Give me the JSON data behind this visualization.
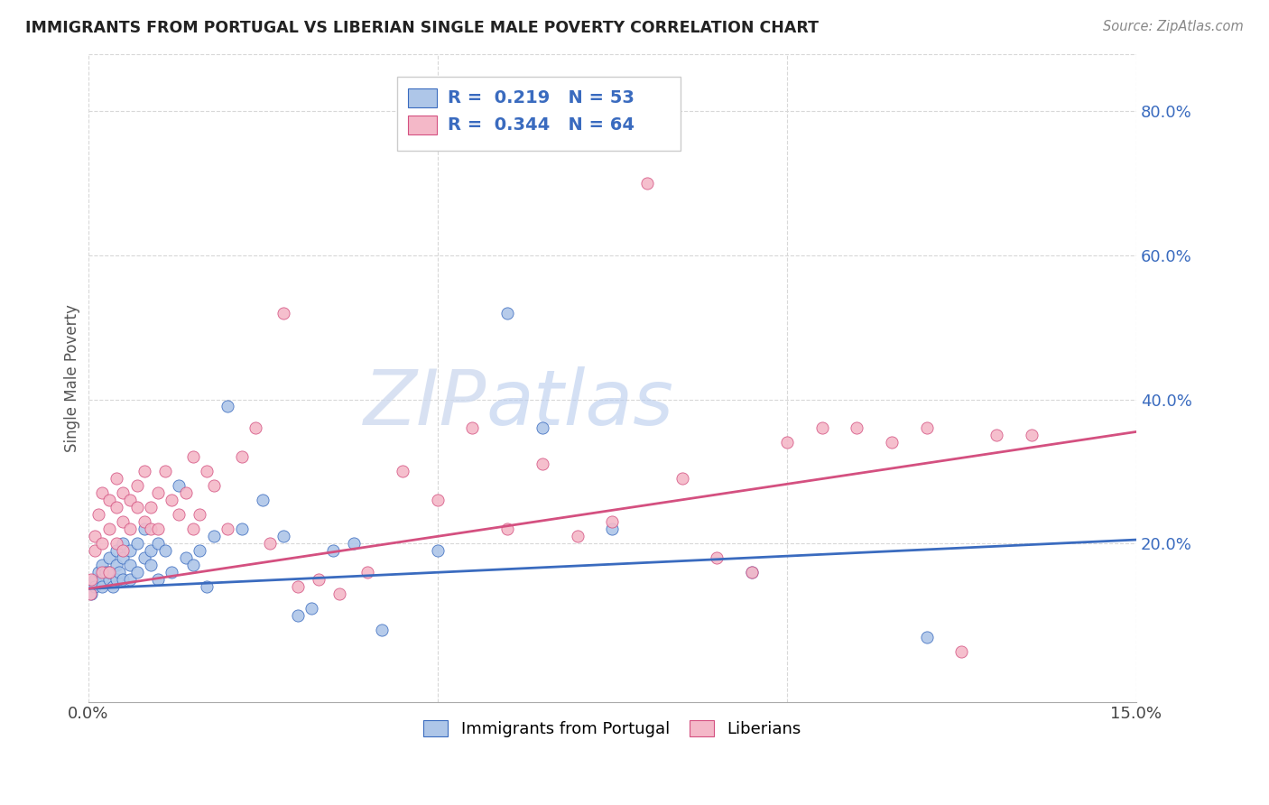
{
  "title": "IMMIGRANTS FROM PORTUGAL VS LIBERIAN SINGLE MALE POVERTY CORRELATION CHART",
  "source": "Source: ZipAtlas.com",
  "ylabel": "Single Male Poverty",
  "right_yticks": [
    "80.0%",
    "60.0%",
    "40.0%",
    "20.0%"
  ],
  "right_ytick_vals": [
    0.8,
    0.6,
    0.4,
    0.2
  ],
  "xlim": [
    0.0,
    0.15
  ],
  "ylim": [
    -0.02,
    0.88
  ],
  "color_portugal": "#aec6e8",
  "color_liberian": "#f4b8c8",
  "color_blue": "#3a6bbf",
  "color_pink": "#d45080",
  "watermark_zip": "ZIP",
  "watermark_atlas": "atlas",
  "background_color": "#ffffff",
  "grid_color": "#d8d8d8",
  "portugal_scatter_x": [
    0.0005,
    0.001,
    0.001,
    0.0015,
    0.002,
    0.002,
    0.002,
    0.0025,
    0.003,
    0.003,
    0.003,
    0.0035,
    0.004,
    0.004,
    0.004,
    0.0045,
    0.005,
    0.005,
    0.005,
    0.006,
    0.006,
    0.006,
    0.007,
    0.007,
    0.008,
    0.008,
    0.009,
    0.009,
    0.01,
    0.01,
    0.011,
    0.012,
    0.013,
    0.014,
    0.015,
    0.016,
    0.017,
    0.018,
    0.02,
    0.022,
    0.025,
    0.028,
    0.03,
    0.032,
    0.035,
    0.038,
    0.042,
    0.05,
    0.06,
    0.065,
    0.075,
    0.095,
    0.12
  ],
  "portugal_scatter_y": [
    0.13,
    0.15,
    0.14,
    0.16,
    0.15,
    0.17,
    0.14,
    0.16,
    0.15,
    0.18,
    0.16,
    0.14,
    0.17,
    0.19,
    0.15,
    0.16,
    0.18,
    0.2,
    0.15,
    0.19,
    0.17,
    0.15,
    0.2,
    0.16,
    0.18,
    0.22,
    0.17,
    0.19,
    0.2,
    0.15,
    0.19,
    0.16,
    0.28,
    0.18,
    0.17,
    0.19,
    0.14,
    0.21,
    0.39,
    0.22,
    0.26,
    0.21,
    0.1,
    0.11,
    0.19,
    0.2,
    0.08,
    0.19,
    0.52,
    0.36,
    0.22,
    0.16,
    0.07
  ],
  "liberian_scatter_x": [
    0.0003,
    0.0005,
    0.001,
    0.001,
    0.0015,
    0.002,
    0.002,
    0.002,
    0.003,
    0.003,
    0.003,
    0.004,
    0.004,
    0.004,
    0.005,
    0.005,
    0.005,
    0.006,
    0.006,
    0.007,
    0.007,
    0.008,
    0.008,
    0.009,
    0.009,
    0.01,
    0.01,
    0.011,
    0.012,
    0.013,
    0.014,
    0.015,
    0.015,
    0.016,
    0.017,
    0.018,
    0.02,
    0.022,
    0.024,
    0.026,
    0.028,
    0.03,
    0.033,
    0.036,
    0.04,
    0.045,
    0.05,
    0.055,
    0.06,
    0.065,
    0.07,
    0.075,
    0.08,
    0.085,
    0.09,
    0.095,
    0.1,
    0.105,
    0.11,
    0.115,
    0.12,
    0.125,
    0.13,
    0.135
  ],
  "liberian_scatter_y": [
    0.13,
    0.15,
    0.19,
    0.21,
    0.24,
    0.2,
    0.27,
    0.16,
    0.22,
    0.26,
    0.16,
    0.25,
    0.2,
    0.29,
    0.23,
    0.27,
    0.19,
    0.26,
    0.22,
    0.28,
    0.25,
    0.3,
    0.23,
    0.25,
    0.22,
    0.27,
    0.22,
    0.3,
    0.26,
    0.24,
    0.27,
    0.22,
    0.32,
    0.24,
    0.3,
    0.28,
    0.22,
    0.32,
    0.36,
    0.2,
    0.52,
    0.14,
    0.15,
    0.13,
    0.16,
    0.3,
    0.26,
    0.36,
    0.22,
    0.31,
    0.21,
    0.23,
    0.7,
    0.29,
    0.18,
    0.16,
    0.34,
    0.36,
    0.36,
    0.34,
    0.36,
    0.05,
    0.35,
    0.35
  ],
  "port_line_x0": 0.0,
  "port_line_y0": 0.137,
  "port_line_x1": 0.15,
  "port_line_y1": 0.205,
  "lib_line_x0": 0.0,
  "lib_line_y0": 0.137,
  "lib_line_x1": 0.15,
  "lib_line_y1": 0.355
}
